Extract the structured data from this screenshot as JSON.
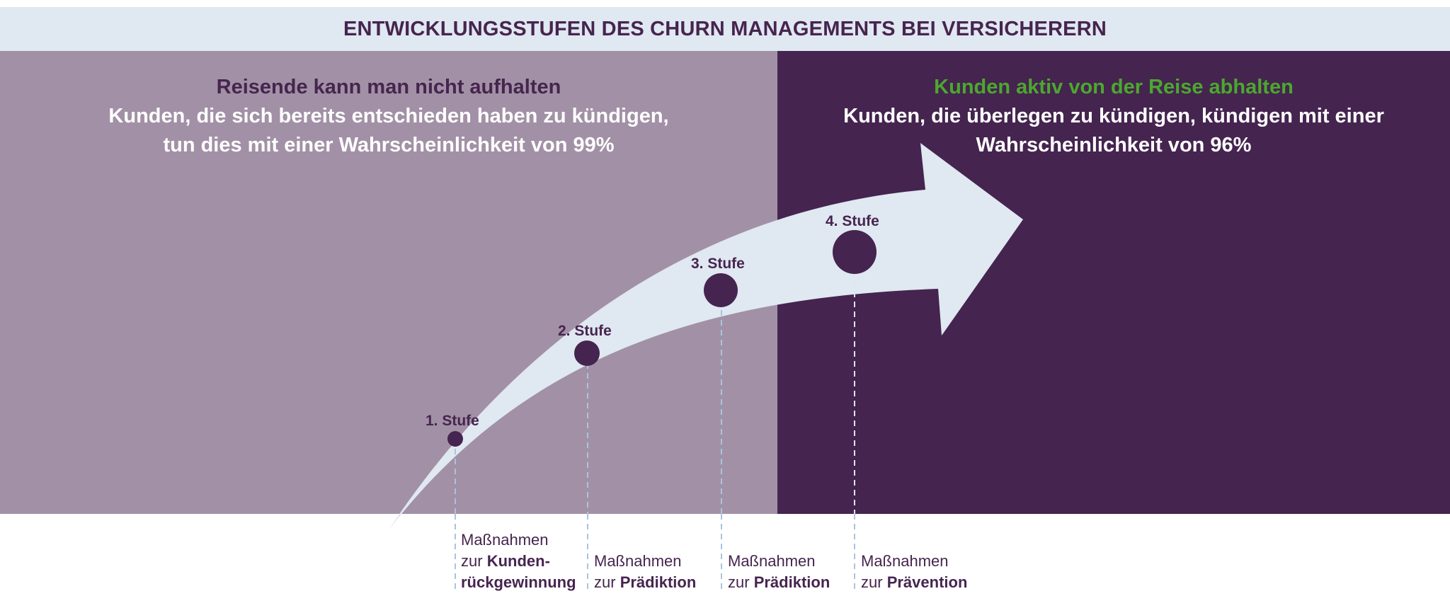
{
  "title": "ENTWICKLUNGSSTUFEN DES CHURN MANAGEMENTS BEI VERSICHERERN",
  "left": {
    "heading": "Reisende kann man nicht aufhalten",
    "line1": "Kunden, die sich bereits entschieden haben zu kündigen,",
    "line2": "tun dies mit einer Wahrscheinlichkeit von 99%"
  },
  "right": {
    "heading": "Kunden aktiv von der Reise abhalten",
    "line1": "Kunden, die überlegen zu kündigen, kündigen mit einer",
    "line2": "Wahrscheinlichkeit von 96%"
  },
  "stages": [
    {
      "label": "1. Stufe",
      "measure_line1": "Maßnahmen",
      "measure_prefix": "zur ",
      "measure_bold": "Kunden-",
      "measure_line3": "rückgewinnung"
    },
    {
      "label": "2. Stufe",
      "measure_line1": "Maßnahmen",
      "measure_prefix": "zur ",
      "measure_bold": "Prädiktion"
    },
    {
      "label": "3. Stufe",
      "measure_line1": "Maßnahmen",
      "measure_prefix": "zur ",
      "measure_bold": "Prädiktion"
    },
    {
      "label": "4. Stufe",
      "measure_line1": "Maßnahmen",
      "measure_prefix": "zur ",
      "measure_bold": "Prävention"
    }
  ],
  "colors": {
    "title_bg": "#e0e8f1",
    "dark_purple": "#45244f",
    "light_purple": "#a291a6",
    "accent_green": "#4ba82e",
    "arrow_fill": "#e0e8f1",
    "dashed_line": "#a9c4de",
    "dashed_line_dark": "#dfe6ee"
  }
}
